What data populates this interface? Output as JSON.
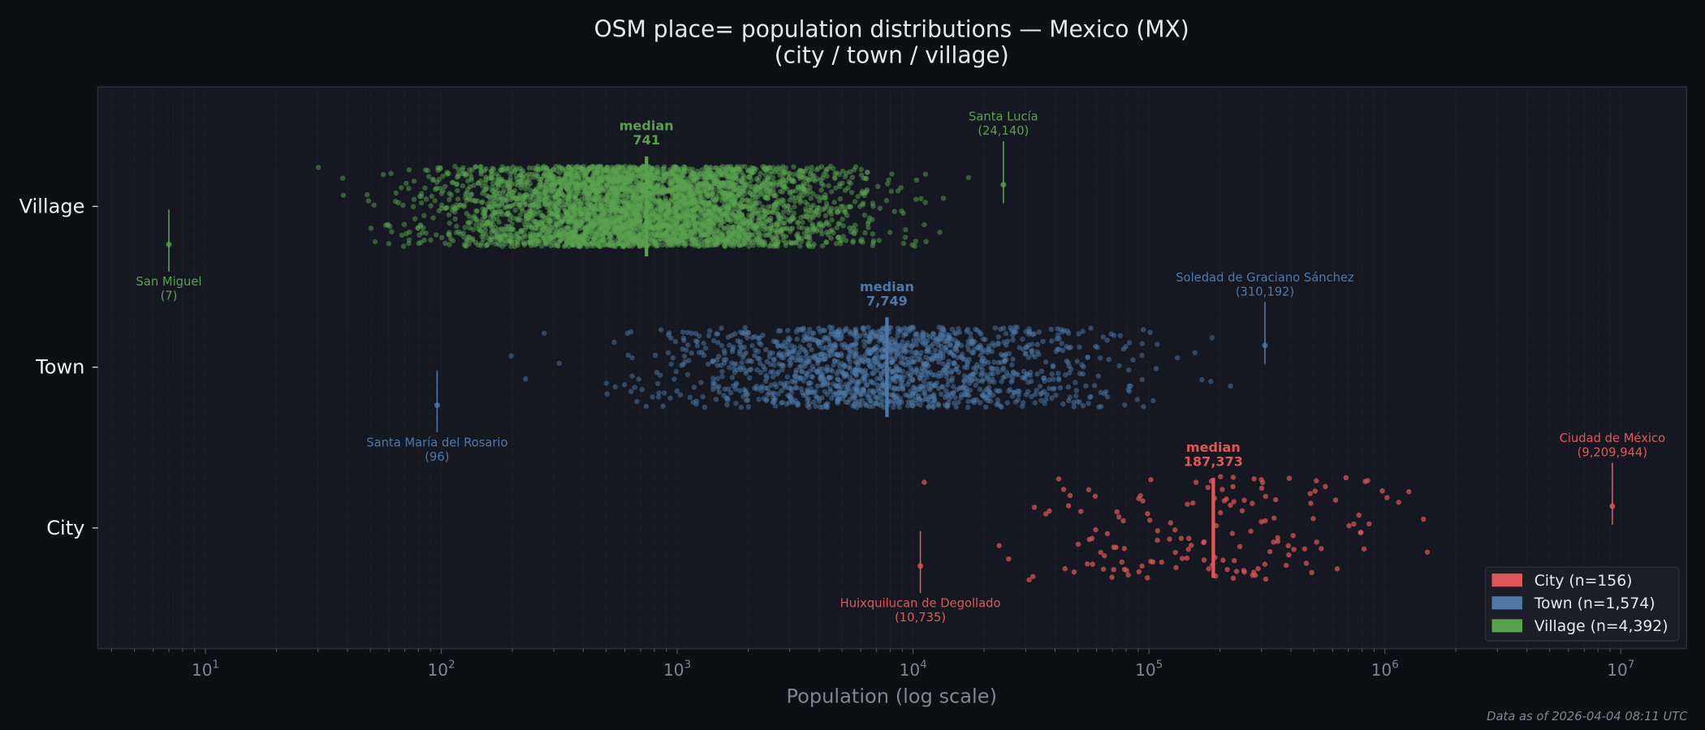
{
  "chart_data": {
    "type": "scatter",
    "subtype": "jittered strip plot",
    "title": "OSM place= population distributions — Mexico (MX)",
    "subtitle": "(city / town / village)",
    "xlabel": "Population (log scale)",
    "ylabel": "",
    "x_scale": "log",
    "xlim": [
      3.5,
      19000000
    ],
    "x_ticks": [
      {
        "base": "10",
        "exp": "1"
      },
      {
        "base": "10",
        "exp": "2"
      },
      {
        "base": "10",
        "exp": "3"
      },
      {
        "base": "10",
        "exp": "4"
      },
      {
        "base": "10",
        "exp": "5"
      },
      {
        "base": "10",
        "exp": "6"
      },
      {
        "base": "10",
        "exp": "7"
      }
    ],
    "categories": [
      "Village",
      "Town",
      "City"
    ],
    "grid": "vertical minor gridlines",
    "legend_position": "bottom-right",
    "series": [
      {
        "name": "Village",
        "legend": "Village  (n=4,392)",
        "n": 4392,
        "color": "#59a14f",
        "median": 741,
        "median_label": "median",
        "median_value": "741",
        "dense_range": [
          200,
          3000
        ],
        "min": {
          "name": "San Miguel",
          "value": 7,
          "value_label": "(7)"
        },
        "max": {
          "name": "Santa Lucía",
          "value": 24140,
          "value_label": "(24,140)"
        }
      },
      {
        "name": "Town",
        "legend": "Town  (n=1,574)",
        "n": 1574,
        "color": "#4e79a7",
        "median": 7749,
        "median_label": "median",
        "median_value": "7,749",
        "dense_range": [
          1500,
          50000
        ],
        "min": {
          "name": "Santa María del Rosario",
          "value": 96,
          "value_label": "(96)"
        },
        "max": {
          "name": "Soledad de Graciano Sánchez",
          "value": 310192,
          "value_label": "(310,192)"
        }
      },
      {
        "name": "City",
        "legend": "City  (n=156)",
        "n": 156,
        "color": "#e15759",
        "median": 187373,
        "median_label": "median",
        "median_value": "187,373",
        "dense_range": [
          30000,
          1800000
        ],
        "min": {
          "name": "Huixquilucan de Degollado",
          "value": 10735,
          "value_label": "(10,735)"
        },
        "max": {
          "name": "Ciudad de México",
          "value": 9209944,
          "value_label": "(9,209,944)"
        }
      }
    ]
  },
  "footer": "Data as of 2026-04-04 08:11 UTC"
}
